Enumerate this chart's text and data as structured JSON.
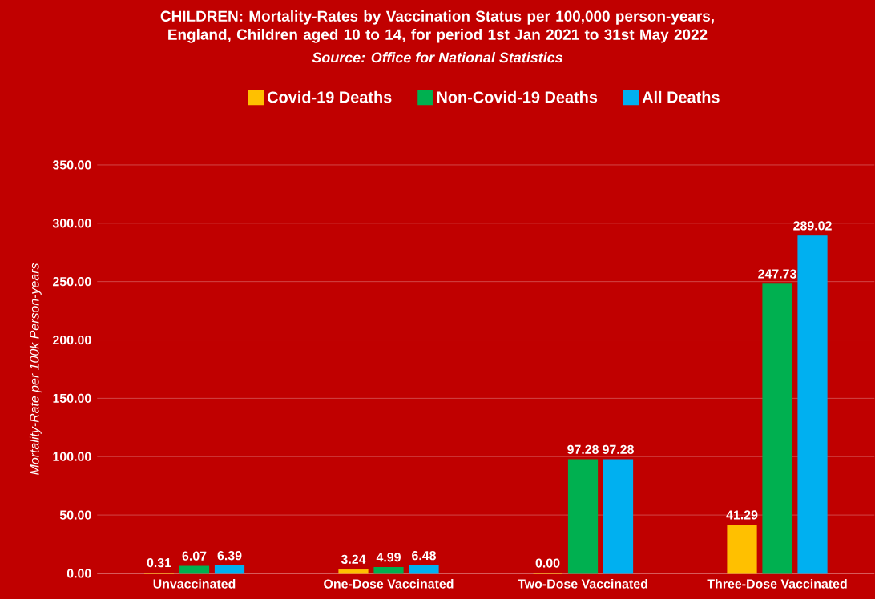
{
  "chart_data": {
    "type": "bar",
    "title": "**CHILDREN:** Mortality-Rates by Vaccination Status per 100,000 person-years, England, Children aged 10 to 14, for period 1st Jan 2021 to 31st May 2022",
    "annotations": [
      "Source: Office for National Statistics"
    ],
    "ylabel": "Mortality-Rate per 100k Person-years",
    "categories": [
      "Unvaccinated",
      "One-Dose Vaccinated",
      "Two-Dose Vaccinated",
      "Three-Dose Vaccinated"
    ],
    "series": [
      {
        "name": "Covid-19 Deaths",
        "color": "#ffc000",
        "values": [
          0.31,
          3.24,
          0.0,
          41.29
        ],
        "value_labels": [
          "0.31",
          "3.24",
          "0.00",
          "41.29"
        ]
      },
      {
        "name": "Non-Covid-19 Deaths",
        "color": "#00b050",
        "values": [
          6.07,
          4.99,
          97.28,
          247.73
        ],
        "value_labels": [
          "6.07",
          "4.99",
          "97.28",
          "247.73"
        ]
      },
      {
        "name": "All Deaths",
        "color": "#00b0f0",
        "values": [
          6.39,
          6.48,
          97.28,
          289.02
        ],
        "value_labels": [
          "6.39",
          "6.48",
          "97.28",
          "289.02"
        ]
      }
    ],
    "ylim": [
      0,
      350
    ],
    "yticks": [
      {
        "value": 0,
        "label": "0.00"
      },
      {
        "value": 50,
        "label": "50.00"
      },
      {
        "value": 100,
        "label": "100.00"
      },
      {
        "value": 150,
        "label": "150.00"
      },
      {
        "value": 200,
        "label": "200.00"
      },
      {
        "value": 250,
        "label": "250.00"
      },
      {
        "value": 300,
        "label": "300.00"
      },
      {
        "value": 350,
        "label": "350.00"
      }
    ],
    "grid": "y",
    "legend": "top"
  }
}
